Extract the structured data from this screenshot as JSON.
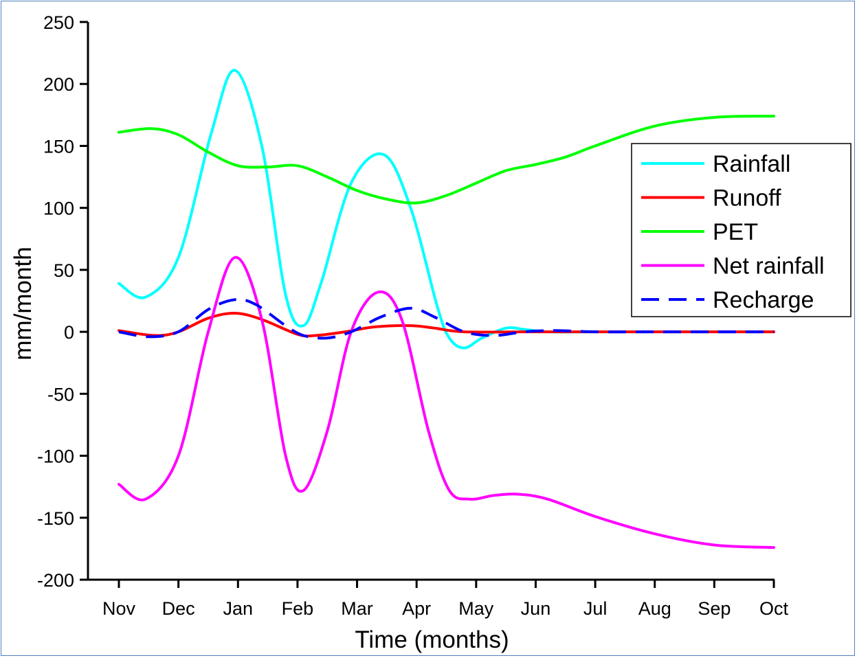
{
  "chart_data": {
    "type": "line",
    "xlabel": "Time (months)",
    "ylabel": "mm/month",
    "ylim": [
      -200,
      250
    ],
    "yticks": [
      -200,
      -150,
      -100,
      -50,
      0,
      50,
      100,
      150,
      200,
      250
    ],
    "categories": [
      "Nov",
      "Dec",
      "Jan",
      "Feb",
      "Mar",
      "Apr",
      "May",
      "Jun",
      "Jul",
      "Aug",
      "Sep",
      "Oct"
    ],
    "grid": false,
    "legend_position": "right",
    "series": [
      {
        "name": "Rainfall",
        "color": "#00ffff",
        "dash": false,
        "points": [
          [
            0,
            39
          ],
          [
            0.45,
            28
          ],
          [
            1,
            60
          ],
          [
            1.55,
            160
          ],
          [
            1.95,
            211
          ],
          [
            2.4,
            150
          ],
          [
            2.8,
            30
          ],
          [
            3.1,
            5
          ],
          [
            3.4,
            40
          ],
          [
            3.9,
            120
          ],
          [
            4.45,
            143
          ],
          [
            4.9,
            100
          ],
          [
            5.35,
            20
          ],
          [
            5.55,
            -5
          ],
          [
            5.8,
            -13
          ],
          [
            6.1,
            -5
          ],
          [
            6.5,
            3
          ],
          [
            6.8,
            2
          ],
          [
            7.2,
            0
          ],
          [
            8,
            0
          ],
          [
            9,
            0
          ],
          [
            10,
            0
          ],
          [
            11,
            0
          ]
        ]
      },
      {
        "name": "Runoff",
        "color": "#ff0000",
        "dash": false,
        "points": [
          [
            0,
            1
          ],
          [
            0.6,
            -3
          ],
          [
            1,
            0
          ],
          [
            1.5,
            11
          ],
          [
            1.95,
            15
          ],
          [
            2.4,
            10
          ],
          [
            3,
            -2
          ],
          [
            3.3,
            -3
          ],
          [
            3.8,
            0
          ],
          [
            4.3,
            4
          ],
          [
            4.9,
            5
          ],
          [
            5.3,
            3
          ],
          [
            5.8,
            0
          ],
          [
            7,
            0
          ],
          [
            8,
            0
          ],
          [
            9,
            0
          ],
          [
            10,
            0
          ],
          [
            11,
            0
          ]
        ]
      },
      {
        "name": "PET",
        "color": "#00ff00",
        "dash": false,
        "points": [
          [
            0,
            161
          ],
          [
            0.55,
            164
          ],
          [
            1,
            159
          ],
          [
            1.5,
            145
          ],
          [
            2,
            134
          ],
          [
            2.5,
            133
          ],
          [
            3,
            134
          ],
          [
            3.5,
            125
          ],
          [
            4,
            114
          ],
          [
            4.5,
            107
          ],
          [
            5,
            104
          ],
          [
            5.5,
            110
          ],
          [
            6,
            120
          ],
          [
            6.5,
            130
          ],
          [
            7,
            135
          ],
          [
            7.5,
            141
          ],
          [
            8,
            150
          ],
          [
            9,
            166
          ],
          [
            10,
            173
          ],
          [
            11,
            174
          ]
        ]
      },
      {
        "name": "Net rainfall",
        "color": "#ff00ff",
        "dash": false,
        "points": [
          [
            0,
            -123
          ],
          [
            0.45,
            -135
          ],
          [
            1,
            -100
          ],
          [
            1.5,
            0
          ],
          [
            1.95,
            60
          ],
          [
            2.4,
            10
          ],
          [
            2.8,
            -100
          ],
          [
            3.1,
            -128
          ],
          [
            3.5,
            -80
          ],
          [
            3.9,
            0
          ],
          [
            4.35,
            32
          ],
          [
            4.75,
            10
          ],
          [
            5.2,
            -80
          ],
          [
            5.55,
            -128
          ],
          [
            5.9,
            -135
          ],
          [
            6.3,
            -132
          ],
          [
            6.7,
            -131
          ],
          [
            7.2,
            -135
          ],
          [
            8,
            -149
          ],
          [
            9,
            -163
          ],
          [
            10,
            -172
          ],
          [
            11,
            -174
          ]
        ]
      },
      {
        "name": "Recharge",
        "color": "#0000ff",
        "dash": true,
        "points": [
          [
            0,
            0
          ],
          [
            0.5,
            -4
          ],
          [
            1,
            0
          ],
          [
            1.5,
            18
          ],
          [
            1.95,
            26
          ],
          [
            2.3,
            22
          ],
          [
            2.8,
            5
          ],
          [
            3.1,
            -3
          ],
          [
            3.5,
            -5
          ],
          [
            3.9,
            0
          ],
          [
            4.4,
            12
          ],
          [
            4.9,
            19
          ],
          [
            5.3,
            12
          ],
          [
            5.8,
            0
          ],
          [
            6.3,
            -3
          ],
          [
            6.8,
            0
          ],
          [
            7.3,
            1
          ],
          [
            8,
            0
          ],
          [
            9,
            0
          ],
          [
            10,
            0
          ],
          [
            11,
            0
          ]
        ]
      }
    ]
  }
}
